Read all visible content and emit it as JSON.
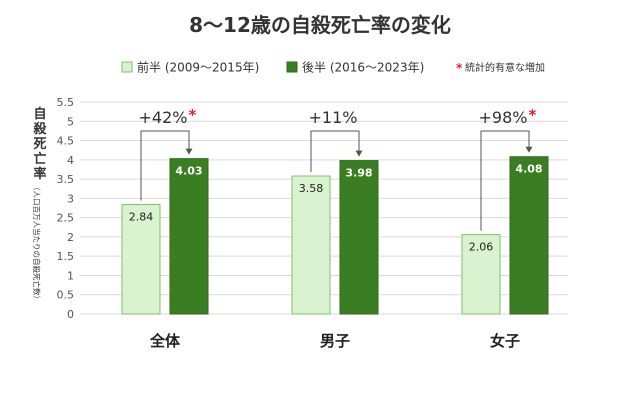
{
  "chart_data": {
    "type": "bar",
    "title": "8～12歳の自殺死亡率の変化",
    "ylabel_main": "自殺死亡率",
    "ylabel_sub": "（人口百万人当たりの自殺死亡数）",
    "categories": [
      "全体",
      "男子",
      "女子"
    ],
    "series": [
      {
        "name": "前半 (2009～2015年)",
        "values": [
          2.84,
          3.58,
          2.06
        ],
        "color": "#d9f2d0",
        "border": "#7fc36a"
      },
      {
        "name": "後半 (2016～2023年)",
        "values": [
          4.03,
          3.98,
          4.08
        ],
        "color": "#3a7d22",
        "border": "#2f6a1b"
      }
    ],
    "value_labels": [
      [
        "2.84",
        "3.58",
        "2.06"
      ],
      [
        "4.03",
        "3.98",
        "4.08"
      ]
    ],
    "changes": [
      {
        "text": "+42%",
        "significant": true
      },
      {
        "text": "+11%",
        "significant": false
      },
      {
        "text": "+98%",
        "significant": true
      }
    ],
    "significance_mark": "*",
    "significance_note": "統計的有意な増加",
    "significance_color": "#e0202a",
    "ylim": [
      0,
      5.5
    ],
    "yticks": [
      "0",
      "0.5",
      "1",
      "1.5",
      "2",
      "2.5",
      "3",
      "3.5",
      "4",
      "4.5",
      "5",
      "5.5"
    ],
    "grid": true,
    "legend_position": "top"
  }
}
